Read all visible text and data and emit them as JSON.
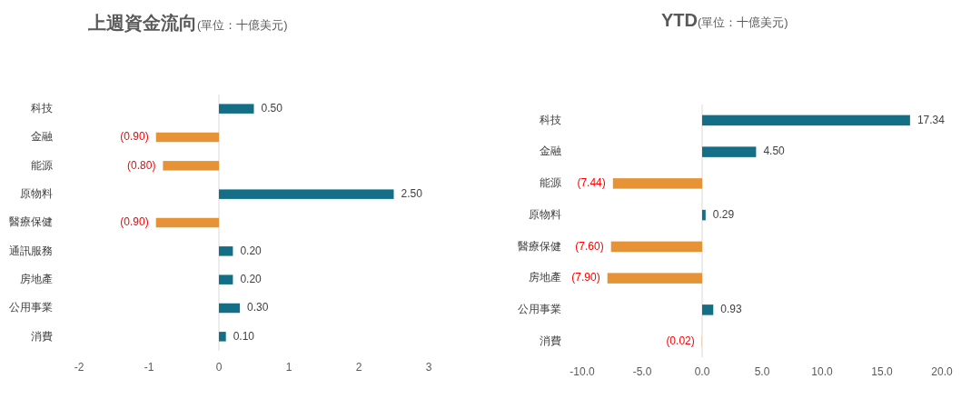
{
  "chart_data": [
    {
      "type": "bar",
      "orientation": "horizontal",
      "title": "上週資金流向",
      "subtitle": "(單位：十億美元)",
      "categories": [
        "科技",
        "金融",
        "能源",
        "原物料",
        "醫療保健",
        "通訊服務",
        "房地產",
        "公用事業",
        "消費"
      ],
      "values": [
        0.5,
        -0.9,
        -0.8,
        2.5,
        -0.9,
        0.2,
        0.2,
        0.3,
        0.1
      ],
      "colors": [
        "#136f86",
        "#e69236",
        "#e69236",
        "#136f86",
        "#e69236",
        "#136f86",
        "#136f86",
        "#136f86",
        "#136f86"
      ],
      "value_labels": [
        "0.50",
        "(0.90)",
        "(0.80)",
        "2.50",
        "(0.90)",
        "0.20",
        "0.20",
        "0.30",
        "0.10"
      ],
      "xlim": [
        -2,
        3
      ],
      "xticks": [
        -2,
        -1,
        0,
        1,
        2,
        3
      ]
    },
    {
      "type": "bar",
      "orientation": "horizontal",
      "title": "YTD",
      "subtitle": "(單位：十億美元)",
      "categories": [
        "科技",
        "金融",
        "能源",
        "原物料",
        "醫療保健",
        "房地產",
        "公用事業",
        "消費"
      ],
      "values": [
        17.34,
        4.5,
        -7.44,
        0.29,
        -7.6,
        -7.9,
        0.93,
        -0.02
      ],
      "colors": [
        "#136f86",
        "#136f86",
        "#e69236",
        "#136f86",
        "#e69236",
        "#e69236",
        "#136f86",
        "#e69236"
      ],
      "value_labels": [
        "17.34",
        "4.50",
        "(7.44)",
        "0.29",
        "(7.60)",
        "(7.90)",
        "0.93",
        "(0.02)"
      ],
      "xlim": [
        -10,
        20
      ],
      "xticks": [
        {
          "value": -10,
          "label": "-10.0"
        },
        {
          "value": -5,
          "label": "-5.0"
        },
        {
          "value": 0,
          "label": "0.0"
        },
        {
          "value": 5,
          "label": "5.0"
        },
        {
          "value": 10,
          "label": "10.0"
        },
        {
          "value": 15,
          "label": "15.0"
        },
        {
          "value": 20,
          "label": "20.0"
        }
      ]
    }
  ]
}
